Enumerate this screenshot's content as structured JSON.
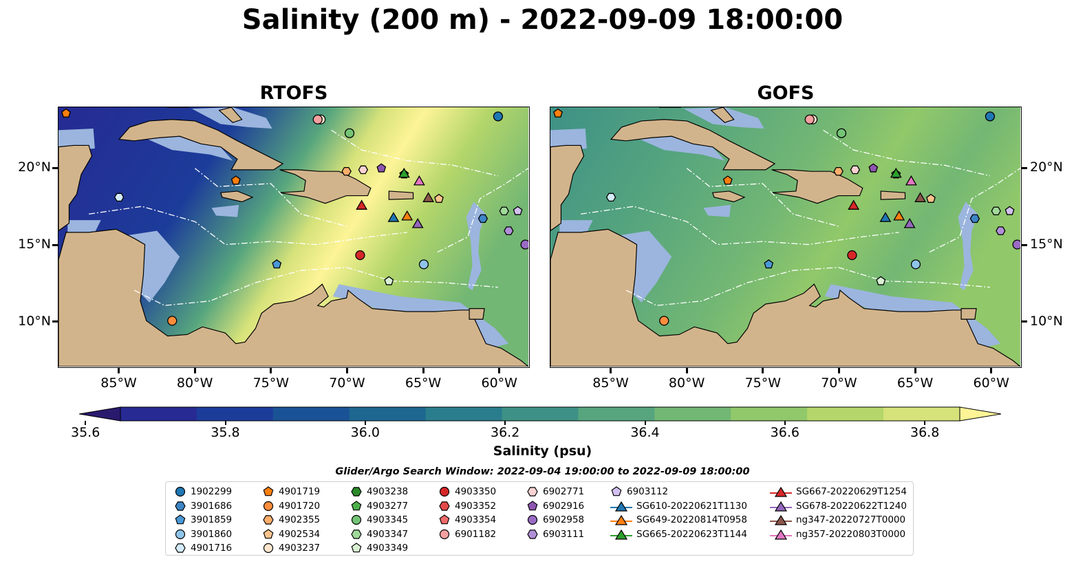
{
  "title": "Salinity (200 m) - 2022-09-09 18:00:00",
  "panels": [
    {
      "key": "rtofs",
      "title": "RTOFS"
    },
    {
      "key": "gofs",
      "title": "GOFS"
    }
  ],
  "map": {
    "extent": {
      "lon_min": -89,
      "lon_max": -58,
      "lat_min": 7,
      "lat_max": 24
    },
    "lon_ticks": [
      {
        "value": -85,
        "label": "85°W"
      },
      {
        "value": -80,
        "label": "80°W"
      },
      {
        "value": -75,
        "label": "75°W"
      },
      {
        "value": -70,
        "label": "70°W"
      },
      {
        "value": -65,
        "label": "65°W"
      },
      {
        "value": -60,
        "label": "60°W"
      }
    ],
    "lat_ticks": [
      {
        "value": 20,
        "label": "20°N"
      },
      {
        "value": 15,
        "label": "15°N"
      },
      {
        "value": 10,
        "label": "10°N"
      }
    ],
    "colors": {
      "land": "#d2b48c",
      "shallow": "#9bb5de",
      "coast": "#000000",
      "eez": "#ffffff"
    }
  },
  "colorbar": {
    "label": "Salinity (psu)",
    "min": 35.55,
    "max": 36.95,
    "step": 0.1,
    "ticks": [
      35.6,
      35.8,
      36.0,
      36.2,
      36.4,
      36.6,
      36.8
    ],
    "tick_labels": [
      "35.6",
      "35.8",
      "36.0",
      "36.2",
      "36.4",
      "36.6",
      "36.8"
    ],
    "colors": [
      "#2a1a6e",
      "#262a92",
      "#1c3c9a",
      "#1a5296",
      "#1d6790",
      "#2a7d8c",
      "#3e9186",
      "#56a57e",
      "#73b774",
      "#91c86a",
      "#b4d66a",
      "#d6e27a",
      "#fdf497"
    ],
    "extend": "both"
  },
  "search_window": "Glider/Argo Search Window: 2022-09-04 19:00:00 to 2022-09-09 18:00:00",
  "legend": {
    "columns": [
      [
        {
          "label": "1902299",
          "marker": "circle",
          "color": "#1f77b4"
        },
        {
          "label": "3901686",
          "marker": "hexagon",
          "color": "#3d85c6"
        },
        {
          "label": "3901859",
          "marker": "pentagon",
          "color": "#4a98d6"
        },
        {
          "label": "3901860",
          "marker": "circle",
          "color": "#8fc4e8"
        },
        {
          "label": "4901716",
          "marker": "hexagon",
          "color": "#d4ecfa"
        }
      ],
      [
        {
          "label": "4901719",
          "marker": "pentagon",
          "color": "#ff7f0e"
        },
        {
          "label": "4901720",
          "marker": "circle",
          "color": "#fd8d3c"
        },
        {
          "label": "4902355",
          "marker": "hexagon",
          "color": "#fdae6b"
        },
        {
          "label": "4902534",
          "marker": "pentagon",
          "color": "#fdc38d"
        },
        {
          "label": "4903237",
          "marker": "circle",
          "color": "#fee6ce"
        }
      ],
      [
        {
          "label": "4903238",
          "marker": "hexagon",
          "color": "#2a8a2a"
        },
        {
          "label": "4903277",
          "marker": "pentagon",
          "color": "#4daf4a"
        },
        {
          "label": "4903345",
          "marker": "circle",
          "color": "#74c476"
        },
        {
          "label": "4903347",
          "marker": "hexagon",
          "color": "#a1d99b"
        },
        {
          "label": "4903349",
          "marker": "pentagon",
          "color": "#d9f0d3"
        }
      ],
      [
        {
          "label": "4903350",
          "marker": "circle",
          "color": "#d62728"
        },
        {
          "label": "4903352",
          "marker": "hexagon",
          "color": "#e34a4a"
        },
        {
          "label": "4903354",
          "marker": "pentagon",
          "color": "#ef6b6b"
        },
        {
          "label": "6901182",
          "marker": "circle",
          "color": "#f4a0a0"
        }
      ],
      [
        {
          "label": "6902771",
          "marker": "hexagon",
          "color": "#fbd3d3"
        },
        {
          "label": "6902916",
          "marker": "pentagon",
          "color": "#8e55b0"
        },
        {
          "label": "6902958",
          "marker": "circle",
          "color": "#9a6bc4"
        },
        {
          "label": "6903111",
          "marker": "hexagon",
          "color": "#b08fd8"
        }
      ],
      [
        {
          "label": "6903112",
          "marker": "pentagon",
          "color": "#d2c0ef"
        },
        {
          "label": "SG610-20220621T1130",
          "marker": "triangle-line",
          "color": "#1f77b4"
        },
        {
          "label": "SG649-20220814T0958",
          "marker": "triangle-line",
          "color": "#ff7f0e"
        },
        {
          "label": "SG665-20220623T1144",
          "marker": "triangle-line",
          "color": "#2ca02c"
        }
      ],
      [
        {
          "label": "SG667-20220629T1254",
          "marker": "triangle-line",
          "color": "#d62728"
        },
        {
          "label": "SG678-20220622T1240",
          "marker": "triangle-line",
          "color": "#9467bd"
        },
        {
          "label": "ng347-20220727T0000",
          "marker": "triangle-line",
          "color": "#8c564b"
        },
        {
          "label": "ng357-20220803T0000",
          "marker": "triangle-line",
          "color": "#e377c2"
        }
      ]
    ]
  },
  "observations": [
    {
      "id": "1902299",
      "lon": -60.0,
      "lat": 23.4
    },
    {
      "id": "3901686",
      "lon": -61.0,
      "lat": 16.7
    },
    {
      "id": "3901859",
      "lon": -74.6,
      "lat": 13.7
    },
    {
      "id": "3901860",
      "lon": -64.9,
      "lat": 13.7
    },
    {
      "id": "4901716",
      "lon": -85.0,
      "lat": 18.1
    },
    {
      "id": "4901719",
      "lon": -77.3,
      "lat": 19.2
    },
    {
      "id": "4901720",
      "lon": -81.5,
      "lat": 10.0
    },
    {
      "id": "4902355",
      "lon": -70.0,
      "lat": 19.8
    },
    {
      "id": "4902534",
      "lon": -63.9,
      "lat": 18.0
    },
    {
      "id": "4903237",
      "lon": -71.7,
      "lat": 23.2
    },
    {
      "id": "4903277",
      "lon": -66.2,
      "lat": 19.6
    },
    {
      "id": "4903345",
      "lon": -69.8,
      "lat": 22.3
    },
    {
      "id": "4903347",
      "lon": -59.6,
      "lat": 17.2
    },
    {
      "id": "4903349",
      "lon": -67.2,
      "lat": 12.6
    },
    {
      "id": "4903350",
      "lon": -69.1,
      "lat": 14.3
    },
    {
      "id": "6901182",
      "lon": -71.9,
      "lat": 23.2
    },
    {
      "id": "6902771",
      "lon": -68.9,
      "lat": 19.9
    },
    {
      "id": "6902916",
      "lon": -67.7,
      "lat": 20.0
    },
    {
      "id": "6902958",
      "lon": -58.2,
      "lat": 15.0
    },
    {
      "id": "6903111",
      "lon": -59.3,
      "lat": 15.9
    },
    {
      "id": "6903112",
      "lon": -58.7,
      "lat": 17.2
    },
    {
      "id": "SG610-20220621T1130",
      "lon": -66.9,
      "lat": 16.7
    },
    {
      "id": "SG649-20220814T0958",
      "lon": -66.0,
      "lat": 16.8
    },
    {
      "id": "SG665-20220623T1144",
      "lon": -66.2,
      "lat": 19.6
    },
    {
      "id": "SG667-20220629T1254",
      "lon": -69.0,
      "lat": 17.5
    },
    {
      "id": "SG678-20220622T1240",
      "lon": -65.3,
      "lat": 16.3
    },
    {
      "id": "ng347-20220727T0000",
      "lon": -64.6,
      "lat": 18.0
    },
    {
      "id": "ng357-20220803T0000",
      "lon": -65.2,
      "lat": 19.1
    },
    {
      "id": "4901719",
      "lon": -88.5,
      "lat": 23.6
    }
  ]
}
